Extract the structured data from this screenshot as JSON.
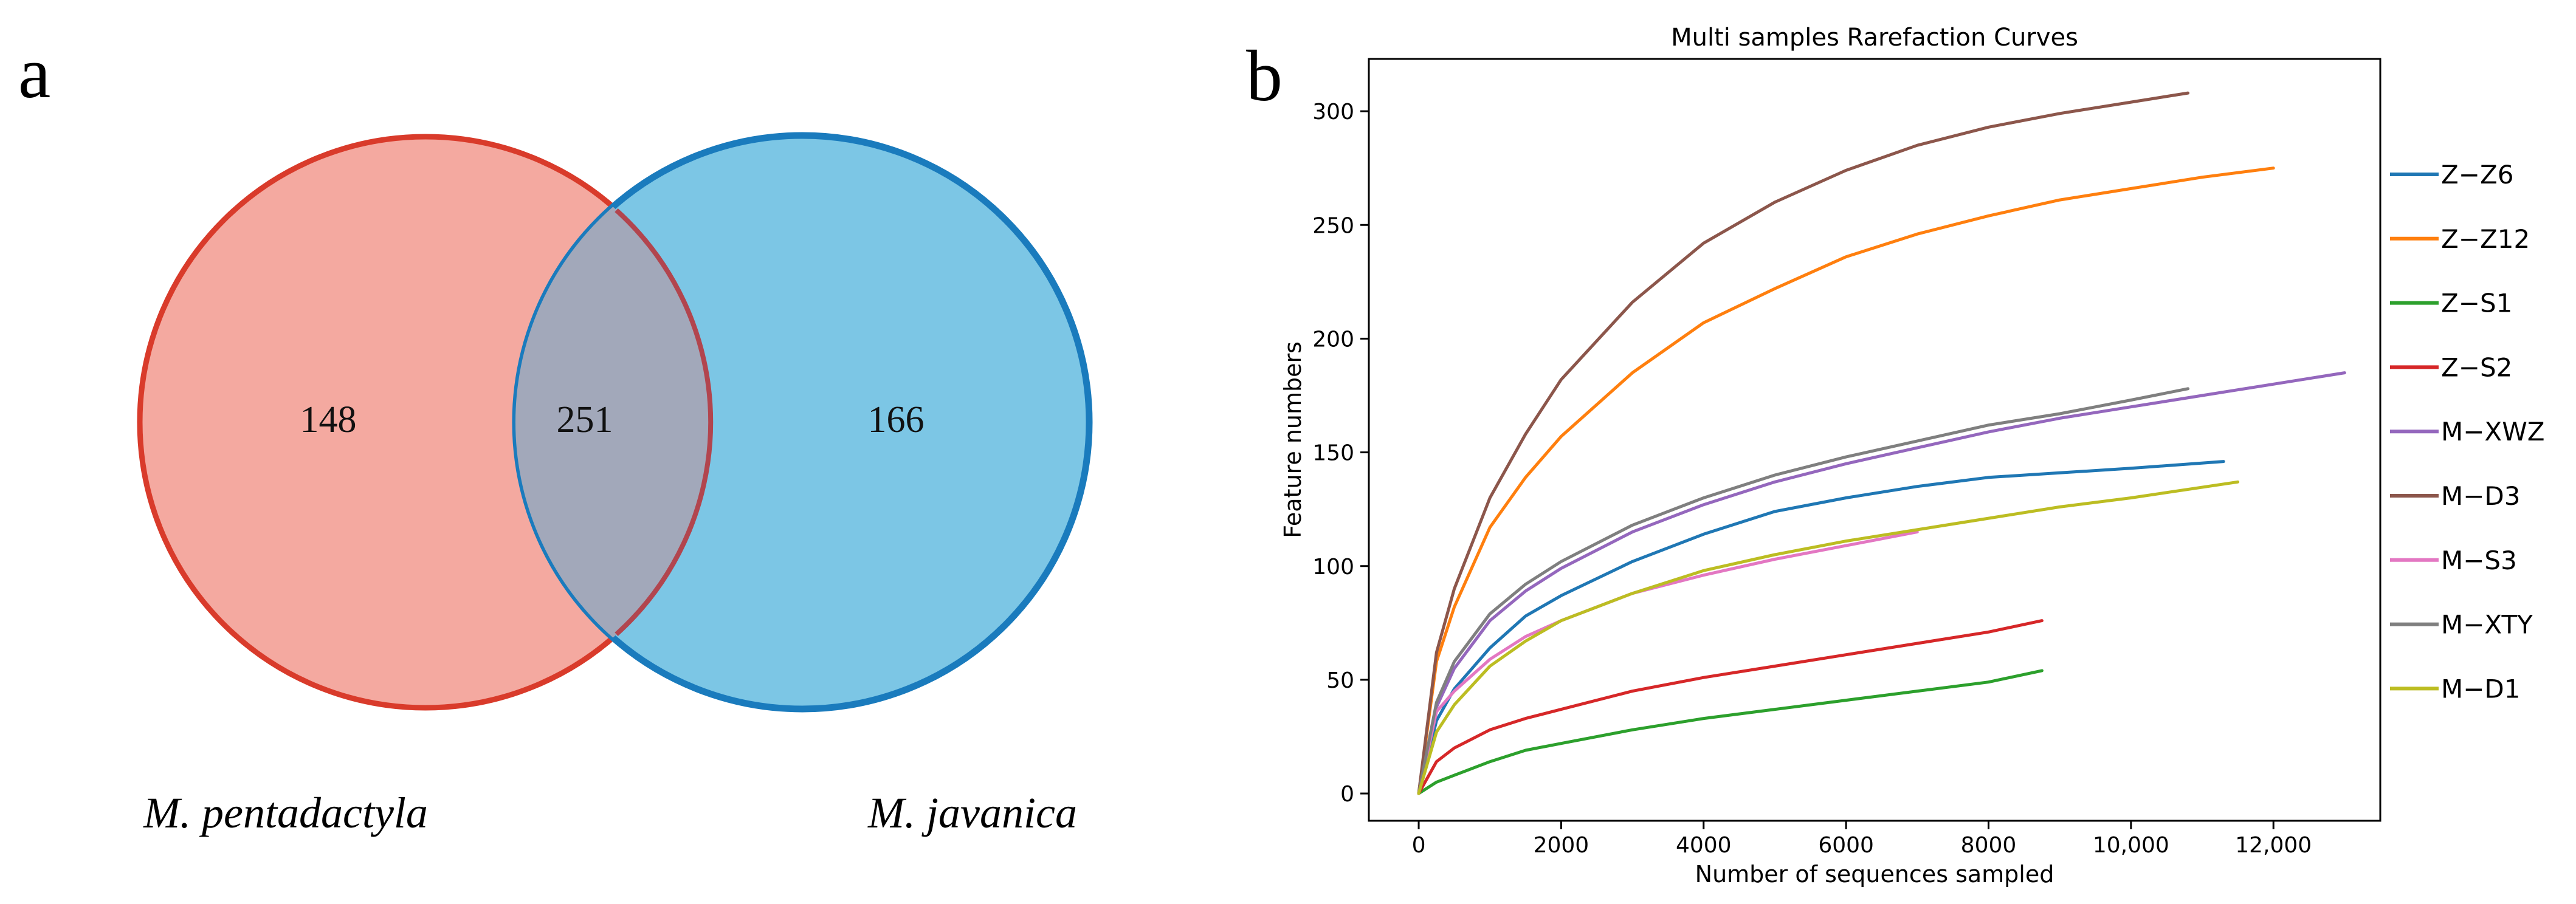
{
  "venn": {
    "panel_label": "a",
    "sets": [
      {
        "name": "M. pentadactyla",
        "unique_count": "148",
        "color": "#d93b2b",
        "fill": "#f4a9a0"
      },
      {
        "name": "M. javanica",
        "unique_count": "166",
        "color": "#1a7bbd",
        "fill": "#7cc6e5"
      }
    ],
    "shared_count": "251",
    "overlap_fill": "#a2a8ba"
  },
  "chart_data": {
    "type": "line",
    "panel_label": "b",
    "title": "Multi samples Rarefaction Curves",
    "xlabel": "Number of sequences sampled",
    "ylabel": "Feature numbers",
    "xlim": [
      -700,
      13500
    ],
    "ylim": [
      -12,
      323
    ],
    "x_ticks": [
      {
        "value": 0,
        "label": "0"
      },
      {
        "value": 2000,
        "label": "2000"
      },
      {
        "value": 4000,
        "label": "4000"
      },
      {
        "value": 6000,
        "label": "6000"
      },
      {
        "value": 8000,
        "label": "8000"
      },
      {
        "value": 10000,
        "label": "10,000"
      },
      {
        "value": 12000,
        "label": "12,000"
      }
    ],
    "y_ticks": [
      {
        "value": 0,
        "label": "0"
      },
      {
        "value": 50,
        "label": "50"
      },
      {
        "value": 100,
        "label": "100"
      },
      {
        "value": 150,
        "label": "150"
      },
      {
        "value": 200,
        "label": "200"
      },
      {
        "value": 250,
        "label": "250"
      },
      {
        "value": 300,
        "label": "300"
      }
    ],
    "legend_position": "right",
    "series": [
      {
        "name": "Z−Z6",
        "color": "#1f77b4",
        "x": [
          0,
          250,
          500,
          1000,
          1500,
          2000,
          3000,
          4000,
          5000,
          6000,
          7000,
          8000,
          9000,
          10000,
          11300
        ],
        "y": [
          0,
          32,
          46,
          64,
          78,
          87,
          102,
          114,
          124,
          130,
          135,
          139,
          141,
          143,
          146
        ]
      },
      {
        "name": "Z−Z12",
        "color": "#ff7f0e",
        "x": [
          0,
          250,
          500,
          1000,
          1500,
          2000,
          3000,
          4000,
          5000,
          6000,
          7000,
          8000,
          9000,
          10000,
          11000,
          12000
        ],
        "y": [
          0,
          58,
          82,
          117,
          139,
          157,
          185,
          207,
          222,
          236,
          246,
          254,
          261,
          266,
          271,
          275
        ]
      },
      {
        "name": "Z−S1",
        "color": "#2ca02c",
        "x": [
          0,
          250,
          500,
          1000,
          1500,
          2000,
          3000,
          4000,
          5000,
          6000,
          7000,
          8000,
          8750
        ],
        "y": [
          0,
          5,
          8,
          14,
          19,
          22,
          28,
          33,
          37,
          41,
          45,
          49,
          54
        ]
      },
      {
        "name": "Z−S2",
        "color": "#d62728",
        "x": [
          0,
          250,
          500,
          1000,
          1500,
          2000,
          3000,
          4000,
          5000,
          6000,
          7000,
          8000,
          8750
        ],
        "y": [
          0,
          14,
          20,
          28,
          33,
          37,
          45,
          51,
          56,
          61,
          66,
          71,
          76
        ]
      },
      {
        "name": "M−XWZ",
        "color": "#9467bd",
        "x": [
          0,
          250,
          500,
          1000,
          1500,
          2000,
          3000,
          4000,
          5000,
          6000,
          7000,
          8000,
          9000,
          10000,
          11000,
          12000,
          13000
        ],
        "y": [
          0,
          38,
          55,
          76,
          89,
          99,
          115,
          127,
          137,
          145,
          152,
          159,
          165,
          170,
          175,
          180,
          185
        ]
      },
      {
        "name": "M−D3",
        "color": "#8c564b",
        "x": [
          0,
          250,
          500,
          1000,
          1500,
          2000,
          3000,
          4000,
          5000,
          6000,
          7000,
          8000,
          9000,
          10000,
          10800
        ],
        "y": [
          0,
          62,
          90,
          130,
          158,
          182,
          216,
          242,
          260,
          274,
          285,
          293,
          299,
          304,
          308
        ]
      },
      {
        "name": "M−S3",
        "color": "#e377c2",
        "x": [
          0,
          250,
          500,
          1000,
          1500,
          2000,
          3000,
          4000,
          5000,
          6000,
          7000
        ],
        "y": [
          0,
          36,
          45,
          59,
          69,
          76,
          88,
          96,
          103,
          109,
          115
        ]
      },
      {
        "name": "M−XTY",
        "color": "#7f7f7f",
        "x": [
          0,
          250,
          500,
          1000,
          1500,
          2000,
          3000,
          4000,
          5000,
          6000,
          7000,
          8000,
          9000,
          10000,
          10800
        ],
        "y": [
          0,
          40,
          58,
          79,
          92,
          102,
          118,
          130,
          140,
          148,
          155,
          162,
          167,
          173,
          178
        ]
      },
      {
        "name": "M−D1",
        "color": "#bcbd22",
        "x": [
          0,
          250,
          500,
          1000,
          1500,
          2000,
          3000,
          4000,
          5000,
          6000,
          7000,
          8000,
          9000,
          10000,
          11500
        ],
        "y": [
          0,
          27,
          39,
          56,
          67,
          76,
          88,
          98,
          105,
          111,
          116,
          121,
          126,
          130,
          137
        ]
      }
    ]
  }
}
